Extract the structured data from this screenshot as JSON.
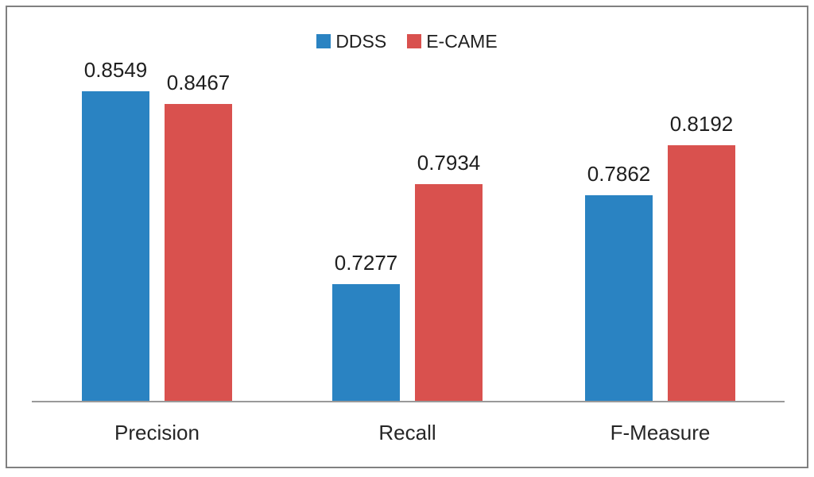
{
  "chart_data": {
    "type": "bar",
    "categories": [
      "Precision",
      "Recall",
      "F-Measure"
    ],
    "series": [
      {
        "name": "DDSS",
        "color": "#2A83C2",
        "values": [
          0.8549,
          0.7277,
          0.7862
        ]
      },
      {
        "name": "E-CAME",
        "color": "#D9514E",
        "values": [
          0.8467,
          0.7934,
          0.8192
        ]
      }
    ],
    "title": "",
    "xlabel": "",
    "ylabel": "",
    "ylim": [
      0.65,
      0.9
    ],
    "grid": false,
    "legend_position": "top-center",
    "data_labels": true,
    "data_label_decimals": 4
  },
  "colors": {
    "frame_border": "#808080",
    "axis_line": "#999999",
    "text": "#1f1f1f"
  }
}
